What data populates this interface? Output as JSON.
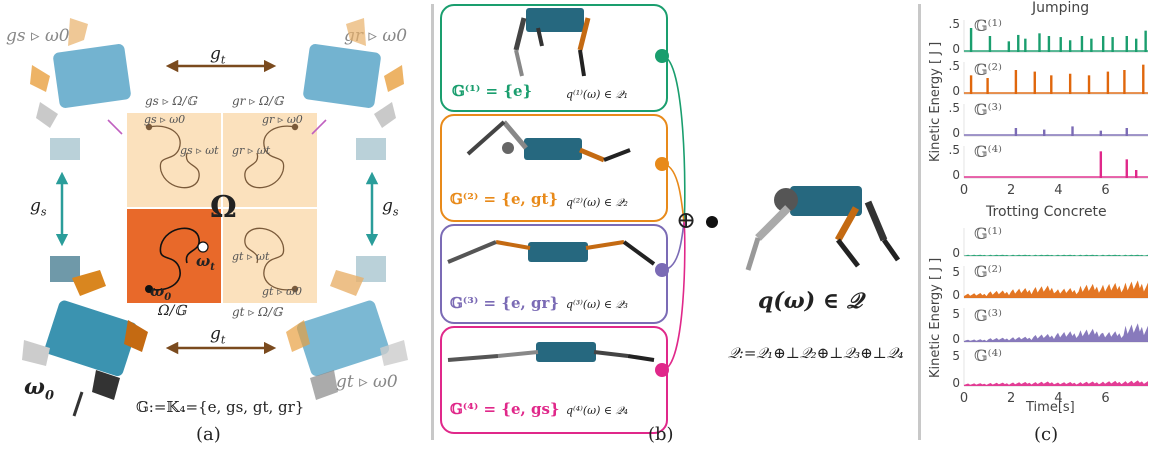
{
  "panel_a": {
    "caption": "(a)",
    "omega": "Ω",
    "omega_t": "ω",
    "omega_t_sub": "t",
    "omega_0": "ω",
    "omega_0_sub": "0",
    "omega0_big": "ω",
    "omega0_big_sub": "0",
    "quotient": "Ω/𝔾",
    "gs_label": "g",
    "gs_sub": "s",
    "gt_label": "g",
    "gt_sub": "t",
    "group_def": "𝔾:=𝕂₄={e, g",
    "group_def_rest": "s, gt, gr}",
    "corner_tl": "gs ▹ ω0",
    "corner_tr": "gr ▹ ω0",
    "corner_br": "gt ▹ ω0",
    "quad_tl": "gs ▹ Ω/𝔾",
    "quad_tr": "gr ▹ Ω/𝔾",
    "quad_br": "gt ▹ Ω/𝔾",
    "mini_tl_a": "gs ▹ ω0",
    "mini_tl_b": "gs ▹ ωt",
    "mini_tr_a": "gr ▹ ω0",
    "mini_tr_b": "gr ▹ ωt",
    "mini_br_a": "gt ▹ ωt",
    "mini_br_b": "gt ▹ ω0"
  },
  "panel_b": {
    "caption": "(b)",
    "boxes": [
      {
        "label": "𝔾⁽¹⁾ = {e}",
        "q": "q⁽¹⁾(ω) ∈ 𝒬₁",
        "color": "#1a9e6e"
      },
      {
        "label": "𝔾⁽²⁾ = {e, gt}",
        "q": "q⁽²⁾(ω) ∈ 𝒬₂",
        "color": "#e88a1a"
      },
      {
        "label": "𝔾⁽³⁾ = {e, gr}",
        "q": "q⁽³⁾(ω) ∈ 𝒬₃",
        "color": "#7b6bb5"
      },
      {
        "label": "𝔾⁽⁴⁾ = {e, gs}",
        "q": "q⁽⁴⁾(ω) ∈ 𝒬₄",
        "color": "#e0288a"
      }
    ],
    "oplus": "⊕",
    "result": "q(ω) ∈ 𝒬",
    "decomp": "𝒬:=𝒬₁⊕⊥𝒬₂⊕⊥𝒬₃⊕⊥𝒬₄"
  },
  "panel_c": {
    "caption": "(c)",
    "title_top": "Jumping",
    "title_bottom": "Trotting Concrete",
    "ylabel": "Kinetic Energy [ J ]",
    "xlabel": "Time[s]",
    "group_labels": [
      "𝔾⁽¹⁾",
      "𝔾⁽²⁾",
      "𝔾⁽³⁾",
      "𝔾⁽⁴⁾"
    ],
    "x_ticks": [
      "0",
      "2",
      "4",
      "6"
    ],
    "y_tick_5": "5",
    "y_tick_0": "0",
    "y_tick_dot5": ".5",
    "colors": [
      "#1a9e6e",
      "#e0670c",
      "#7b6bb5",
      "#e0288a"
    ]
  },
  "chart_data": [
    {
      "type": "bar",
      "title": "Jumping",
      "xlabel": "",
      "ylabel": "Kinetic Energy [ J ]",
      "x_range": [
        0,
        7.8
      ],
      "series": [
        {
          "name": "𝔾⁽¹⁾",
          "ylim": [
            0,
            0.6
          ],
          "peaks": [
            [
              0.3,
              0.45
            ],
            [
              1.1,
              0.3
            ],
            [
              1.9,
              0.2
            ],
            [
              2.3,
              0.32
            ],
            [
              2.6,
              0.25
            ],
            [
              3.2,
              0.35
            ],
            [
              3.6,
              0.3
            ],
            [
              4.1,
              0.28
            ],
            [
              4.5,
              0.22
            ],
            [
              5.0,
              0.3
            ],
            [
              5.4,
              0.25
            ],
            [
              5.9,
              0.3
            ],
            [
              6.3,
              0.28
            ],
            [
              6.9,
              0.3
            ],
            [
              7.3,
              0.25
            ],
            [
              7.7,
              0.4
            ]
          ]
        },
        {
          "name": "𝔾⁽²⁾",
          "ylim": [
            0,
            0.6
          ],
          "peaks": [
            [
              0.3,
              0.35
            ],
            [
              1.0,
              0.3
            ],
            [
              2.2,
              0.45
            ],
            [
              3.0,
              0.42
            ],
            [
              3.7,
              0.35
            ],
            [
              4.5,
              0.38
            ],
            [
              5.3,
              0.35
            ],
            [
              6.1,
              0.42
            ],
            [
              6.8,
              0.45
            ],
            [
              7.6,
              0.55
            ]
          ]
        },
        {
          "name": "𝔾⁽³⁾",
          "ylim": [
            0,
            0.6
          ],
          "peaks": [
            [
              2.2,
              0.15
            ],
            [
              3.4,
              0.12
            ],
            [
              4.6,
              0.18
            ],
            [
              5.8,
              0.1
            ],
            [
              6.9,
              0.15
            ]
          ]
        },
        {
          "name": "𝔾⁽⁴⁾",
          "ylim": [
            0,
            0.6
          ],
          "peaks": [
            [
              5.8,
              0.5
            ],
            [
              6.9,
              0.35
            ],
            [
              7.3,
              0.15
            ]
          ]
        }
      ]
    },
    {
      "type": "area",
      "title": "Trotting Concrete",
      "xlabel": "Time[s]",
      "ylabel": "Kinetic Energy [ J ]",
      "x_range": [
        0,
        7.8
      ],
      "series": [
        {
          "name": "𝔾⁽¹⁾",
          "ylim": [
            0,
            6
          ],
          "level": [
            0.3,
            0.3,
            0.3,
            0.3,
            0.3,
            0.3,
            0.3,
            0.3
          ]
        },
        {
          "name": "𝔾⁽²⁾",
          "ylim": [
            0,
            6
          ],
          "level": [
            1.0,
            1.5,
            2.0,
            2.5,
            2.0,
            2.8,
            3.0,
            3.5
          ]
        },
        {
          "name": "𝔾⁽³⁾",
          "ylim": [
            0,
            6
          ],
          "level": [
            0.5,
            0.8,
            1.0,
            1.5,
            2.0,
            2.5,
            2.0,
            3.5
          ]
        },
        {
          "name": "𝔾⁽⁴⁾",
          "ylim": [
            0,
            6
          ],
          "level": [
            0.5,
            0.6,
            0.7,
            0.8,
            0.7,
            0.8,
            0.9,
            1.0
          ]
        }
      ]
    }
  ]
}
